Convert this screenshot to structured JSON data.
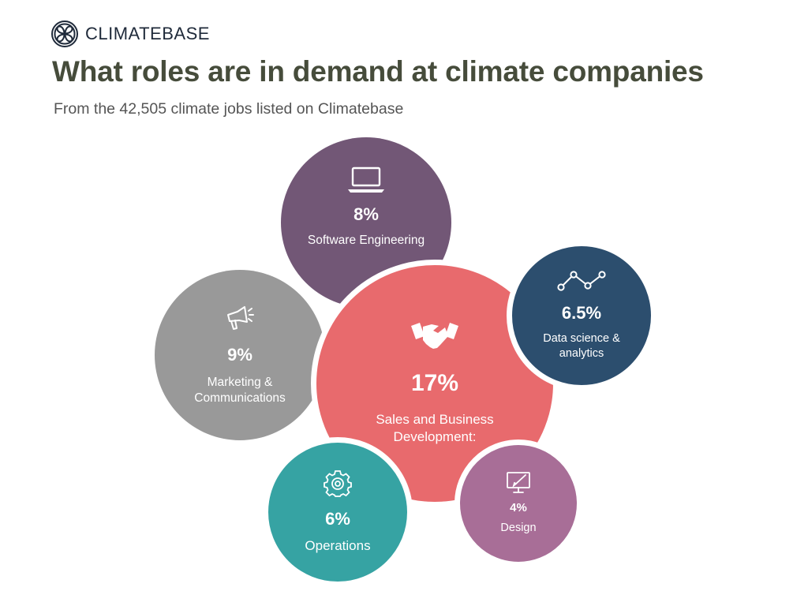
{
  "brand": {
    "name": "CLIMATEBASE",
    "logo_icon": "climatebase-logo-icon"
  },
  "header": {
    "title": "What roles are in demand at climate companies",
    "subtitle": "From the 42,505 climate jobs listed on Climatebase"
  },
  "chart_data": {
    "type": "bubble",
    "title": "What roles are in demand at climate companies",
    "subtitle": "From the 42,505 climate jobs listed on Climatebase",
    "unit": "%",
    "categories": [
      "Software Engineering",
      "Data science & analytics",
      "Marketing & Communications",
      "Sales and Business Development:",
      "Operations",
      "Design"
    ],
    "values": [
      8,
      6.5,
      9,
      17,
      6,
      4
    ],
    "value_labels": [
      "8%",
      "6.5%",
      "9%",
      "17%",
      "6%",
      "4%"
    ],
    "colors": [
      "#725776",
      "#2c4e6e",
      "#999999",
      "#e86a6d",
      "#36a3a3",
      "#a86e97"
    ],
    "icons": [
      "laptop-icon",
      "line-chart-icon",
      "megaphone-icon",
      "handshake-icon",
      "gear-icon",
      "design-monitor-icon"
    ]
  }
}
